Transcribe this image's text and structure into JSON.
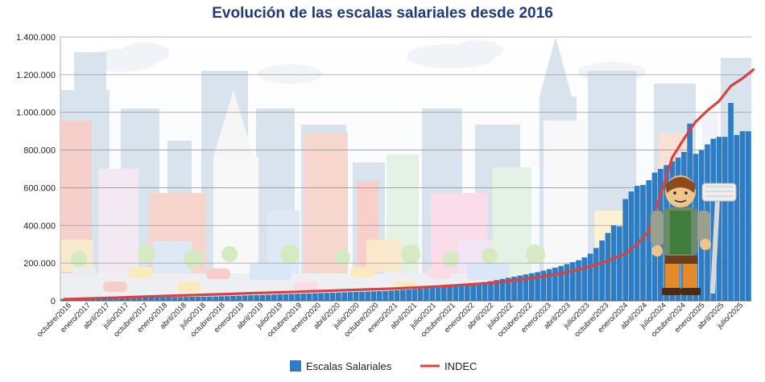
{
  "chart_data": {
    "type": "bar+line",
    "title": "Evolución de las escalas salariales desde 2016",
    "ylim": [
      0,
      1400000
    ],
    "yticks": [
      "0",
      "200.000",
      "400.000",
      "600.000",
      "800.000",
      "1.000.000",
      "1.200.000",
      "1.400.000"
    ],
    "grid": true,
    "legend_position": "bottom",
    "x_tick_labels": [
      "octubre/2016",
      "enero/2017",
      "abril/2017",
      "julio/2017",
      "octubre/2017",
      "enero/2018",
      "abril/2018",
      "julio/2018",
      "octubre/2018",
      "enero/2019",
      "abril/2019",
      "julio/2019",
      "octubre/2019",
      "enero/2020",
      "abril/2020",
      "julio/2020",
      "octubre/2020",
      "enero/2021",
      "abril/2021",
      "julio/2021",
      "octubre/2021",
      "enero/2022",
      "abril/2022",
      "julio/2022",
      "octubre/2022",
      "enero/2023",
      "abril/2023",
      "julio/2023",
      "octubre/2023",
      "enero/2024",
      "abril/2024",
      "julio/2024",
      "octubre/2024",
      "enero/2025",
      "abril/2025",
      "julio/2025"
    ],
    "series": [
      {
        "name": "Escalas Salariales",
        "type": "bar",
        "color": "#2e7cc4",
        "values": [
          10000,
          10500,
          11000,
          11500,
          12000,
          12500,
          13000,
          13500,
          14000,
          14500,
          15000,
          15500,
          16000,
          16500,
          17000,
          17500,
          18000,
          18500,
          19000,
          19500,
          20000,
          20500,
          21000,
          21500,
          22000,
          22500,
          23000,
          24000,
          25000,
          26000,
          27000,
          28000,
          29000,
          30000,
          31000,
          32000,
          33000,
          34000,
          35000,
          36000,
          37000,
          38000,
          39000,
          40000,
          41000,
          42000,
          43000,
          44000,
          45000,
          46000,
          47000,
          48000,
          49000,
          50000,
          51000,
          52000,
          54000,
          56000,
          58000,
          60000,
          62000,
          64000,
          66000,
          68000,
          70000,
          73000,
          76000,
          80000,
          84000,
          88000,
          92000,
          96000,
          100000,
          104000,
          110000,
          116000,
          122000,
          128000,
          134000,
          140000,
          146000,
          152000,
          160000,
          168000,
          176000,
          185000,
          195000,
          205000,
          215000,
          230000,
          250000,
          280000,
          320000,
          360000,
          400000,
          395000,
          540000,
          580000,
          610000,
          615000,
          640000,
          680000,
          700000,
          720000,
          740000,
          760000,
          790000,
          940000,
          780000,
          800000,
          830000,
          860000,
          870000,
          870000,
          1050000,
          880000,
          900000,
          900000
        ]
      },
      {
        "name": "INDEC",
        "type": "line",
        "color": "#d94242",
        "x_index": [
          0,
          4,
          8,
          12,
          16,
          20,
          24,
          28,
          32,
          36,
          40,
          44,
          48,
          52,
          56,
          60,
          64,
          68,
          72,
          76,
          80,
          84,
          88,
          92,
          96,
          98,
          100,
          102,
          104,
          106,
          108,
          110,
          112,
          114,
          116,
          118
        ],
        "values": [
          8000,
          12000,
          16000,
          20000,
          24000,
          28000,
          32000,
          36000,
          40000,
          44000,
          48000,
          52000,
          56000,
          60000,
          64000,
          70000,
          76000,
          84000,
          92000,
          104000,
          120000,
          140000,
          165000,
          200000,
          250000,
          300000,
          370000,
          560000,
          760000,
          860000,
          950000,
          1010000,
          1060000,
          1140000,
          1180000,
          1230000
        ]
      }
    ]
  }
}
